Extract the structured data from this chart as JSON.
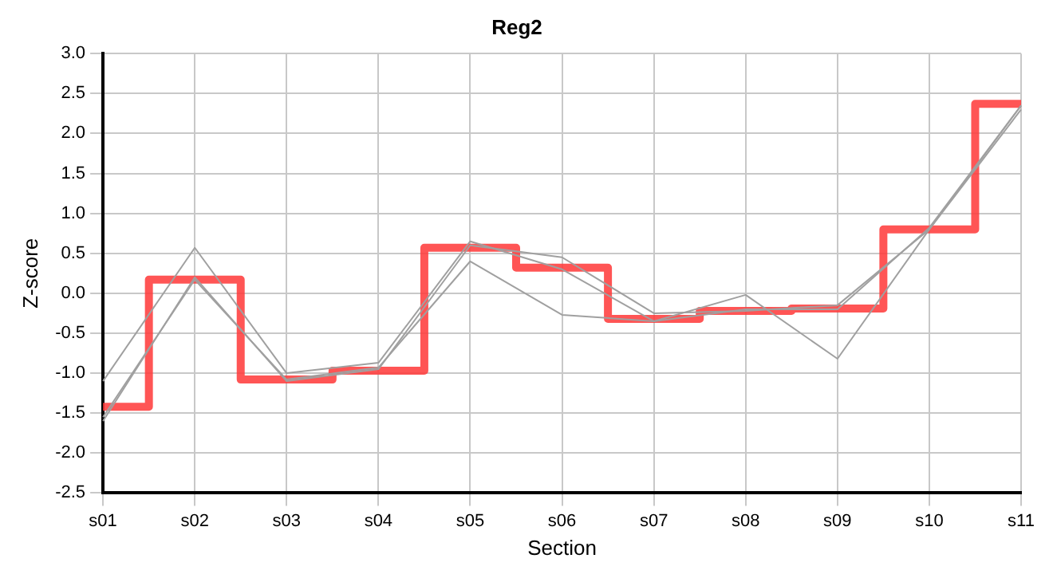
{
  "chart_data": {
    "type": "line",
    "title": "Reg2",
    "xlabel": "Section",
    "ylabel": "Z-score",
    "categories": [
      "s01",
      "s02",
      "s03",
      "s04",
      "s05",
      "s06",
      "s07",
      "s08",
      "s09",
      "s10",
      "s11"
    ],
    "series": [
      {
        "color": "#a0a0a0",
        "values": [
          -1.1,
          0.57,
          -1.0,
          -0.87,
          0.65,
          0.3,
          -0.35,
          -0.02,
          -0.82,
          0.8,
          2.35
        ]
      },
      {
        "color": "#a0a0a0",
        "values": [
          -1.6,
          0.2,
          -1.1,
          -0.95,
          0.6,
          0.45,
          -0.25,
          -0.22,
          -0.15,
          0.8,
          2.3
        ]
      },
      {
        "color": "#a0a0a0",
        "values": [
          -1.55,
          0.17,
          -1.08,
          -0.93,
          0.4,
          -0.27,
          -0.35,
          -0.2,
          -0.2,
          0.82,
          2.35
        ]
      },
      {
        "type": "step",
        "color": "#ff3b3b",
        "values": [
          -1.42,
          0.17,
          -1.08,
          -0.97,
          0.57,
          0.32,
          -0.32,
          -0.22,
          -0.19,
          0.8,
          2.37
        ]
      }
    ],
    "ylim": [
      -2.5,
      3.0
    ],
    "yticks": [
      -2.5,
      {
        "value": -2,
        "label": "-2.0"
      },
      -1.5,
      {
        "value": -1,
        "label": "-1.0"
      },
      -0.5,
      {
        "value": 0,
        "label": "0.0"
      },
      0.5,
      {
        "value": 1,
        "label": "1.0"
      },
      1.5,
      {
        "value": 2,
        "label": "2.0"
      },
      2.5,
      {
        "value": 3,
        "label": "3.0"
      }
    ],
    "grid": true,
    "legend": false,
    "marker": "none"
  }
}
